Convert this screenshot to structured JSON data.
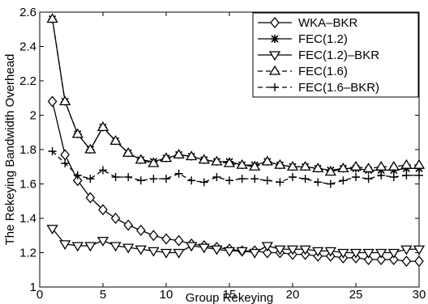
{
  "chart_data": {
    "type": "line",
    "title": "",
    "xlabel": "Group Rekeying",
    "ylabel": "The Rekeying Bandwidth Overhead",
    "xlim": [
      0,
      30
    ],
    "ylim": [
      1,
      2.6
    ],
    "xticks": [
      0,
      5,
      10,
      15,
      20,
      25,
      30
    ],
    "yticks": [
      1,
      1.2,
      1.4,
      1.6,
      1.8,
      2,
      2.2,
      2.4,
      2.6
    ],
    "grid": false,
    "legend_position": "top-right",
    "x": [
      1,
      2,
      3,
      4,
      5,
      6,
      7,
      8,
      9,
      10,
      11,
      12,
      13,
      14,
      15,
      16,
      17,
      18,
      19,
      20,
      21,
      22,
      23,
      24,
      25,
      26,
      27,
      28,
      29,
      30
    ],
    "series": [
      {
        "name": "WKA–BKR",
        "marker": "diamond",
        "line_style": "solid",
        "values": [
          2.08,
          1.77,
          1.62,
          1.52,
          1.45,
          1.4,
          1.36,
          1.33,
          1.3,
          1.28,
          1.27,
          1.25,
          1.24,
          1.23,
          1.22,
          1.21,
          1.21,
          1.2,
          1.2,
          1.19,
          1.19,
          1.18,
          1.18,
          1.17,
          1.17,
          1.16,
          1.16,
          1.16,
          1.15,
          1.15
        ]
      },
      {
        "name": "FEC(1.2)",
        "marker": "star",
        "line_style": "solid",
        "values": [
          2.56,
          2.08,
          1.89,
          1.8,
          1.93,
          1.85,
          1.78,
          1.74,
          1.73,
          1.75,
          1.77,
          1.76,
          1.74,
          1.73,
          1.73,
          1.71,
          1.71,
          1.73,
          1.71,
          1.7,
          1.7,
          1.69,
          1.68,
          1.69,
          1.69,
          1.68,
          1.68,
          1.68,
          1.69,
          1.69
        ]
      },
      {
        "name": "FEC(1.2)–BKR",
        "marker": "triangle-down",
        "line_style": "solid",
        "values": [
          1.34,
          1.25,
          1.24,
          1.24,
          1.27,
          1.24,
          1.23,
          1.22,
          1.21,
          1.2,
          1.2,
          1.24,
          1.23,
          1.22,
          1.21,
          1.21,
          1.2,
          1.24,
          1.22,
          1.22,
          1.22,
          1.21,
          1.21,
          1.2,
          1.2,
          1.2,
          1.2,
          1.2,
          1.22,
          1.22
        ]
      },
      {
        "name": "FEC(1.6)",
        "marker": "triangle-up",
        "line_style": "dashed",
        "values": [
          2.56,
          2.08,
          1.89,
          1.8,
          1.93,
          1.85,
          1.78,
          1.74,
          1.72,
          1.75,
          1.77,
          1.76,
          1.74,
          1.73,
          1.72,
          1.71,
          1.7,
          1.73,
          1.71,
          1.7,
          1.7,
          1.69,
          1.67,
          1.69,
          1.7,
          1.69,
          1.7,
          1.7,
          1.71,
          1.71
        ]
      },
      {
        "name": "FEC(1.6–BKR)",
        "marker": "plus",
        "line_style": "dashed",
        "values": [
          1.79,
          1.72,
          1.65,
          1.63,
          1.68,
          1.64,
          1.64,
          1.62,
          1.63,
          1.63,
          1.66,
          1.62,
          1.61,
          1.64,
          1.62,
          1.63,
          1.63,
          1.62,
          1.61,
          1.64,
          1.63,
          1.61,
          1.6,
          1.62,
          1.64,
          1.63,
          1.65,
          1.64,
          1.65,
          1.65
        ]
      }
    ]
  }
}
